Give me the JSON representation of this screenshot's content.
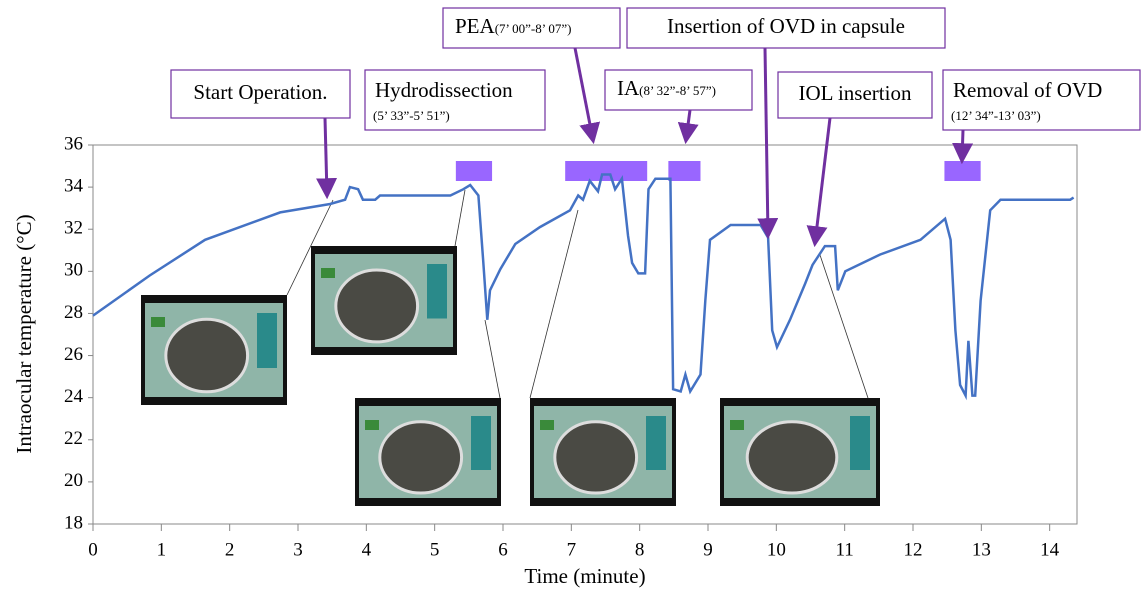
{
  "chart_data": {
    "type": "line",
    "x_label": "Time (minute)",
    "y_label": "Intraocular temperature (°C)",
    "xlim": [
      0,
      14.4
    ],
    "xticks": [
      0,
      1,
      2,
      3,
      4,
      5,
      6,
      7,
      8,
      9,
      10,
      11,
      12,
      13,
      14
    ],
    "ylim": [
      18,
      36
    ],
    "yticks": [
      18,
      20,
      22,
      24,
      26,
      28,
      30,
      32,
      34,
      36
    ],
    "grid": false,
    "series": [
      {
        "color": "#4472c4",
        "x": [
          0,
          0.83,
          1.64,
          2.74,
          3.47,
          3.69,
          3.76,
          3.88,
          3.95,
          4.13,
          4.2,
          5.23,
          5.42,
          5.52,
          5.64,
          5.71,
          5.77,
          5.81,
          5.96,
          6.18,
          6.54,
          6.98,
          7.1,
          7.17,
          7.27,
          7.39,
          7.45,
          7.57,
          7.64,
          7.74,
          7.83,
          7.89,
          7.98,
          8.08,
          8.13,
          8.23,
          8.45,
          8.49,
          8.6,
          8.67,
          8.74,
          8.89,
          8.96,
          9.03,
          9.33,
          9.77,
          9.88,
          9.94,
          10.01,
          10.2,
          10.42,
          10.53,
          10.71,
          10.86,
          10.9,
          11.01,
          11.52,
          12.11,
          12.47,
          12.55,
          12.62,
          12.69,
          12.77,
          12.81,
          12.87,
          12.91,
          12.99,
          13.13,
          13.28,
          14.3,
          14.35
        ],
        "values": [
          27.9,
          29.8,
          31.5,
          32.8,
          33.2,
          33.4,
          34.0,
          33.9,
          33.4,
          33.4,
          33.6,
          33.6,
          33.9,
          34.1,
          33.6,
          30.5,
          27.7,
          29.1,
          30.1,
          31.3,
          32.1,
          32.9,
          33.6,
          33.4,
          34.3,
          33.8,
          34.6,
          34.6,
          33.9,
          34.4,
          31.7,
          30.4,
          29.9,
          29.9,
          33.9,
          34.4,
          34.4,
          24.4,
          24.3,
          25.1,
          24.3,
          25.1,
          28.6,
          31.5,
          32.2,
          32.2,
          31.6,
          27.2,
          26.4,
          27.7,
          29.4,
          30.3,
          31.2,
          31.2,
          29.1,
          30.0,
          30.8,
          31.5,
          32.5,
          31.5,
          27.2,
          24.6,
          24.1,
          26.7,
          24.1,
          24.1,
          28.6,
          32.9,
          33.4,
          33.4,
          33.5
        ]
      }
    ],
    "periods_color": "#9966ff",
    "periods": [
      {
        "start": 5.31,
        "end": 5.84
      },
      {
        "start": 6.91,
        "end": 8.11
      },
      {
        "start": 8.42,
        "end": 8.89
      },
      {
        "start": 12.46,
        "end": 12.99
      }
    ],
    "annotations": [
      {
        "text": "Start Operation."
      },
      {
        "text": "Hydrodissection",
        "subtext": "(5’ 33”-5’ 51”)"
      },
      {
        "text": "PEA",
        "subtext": "(7’ 00”-8’ 07”)"
      },
      {
        "text": "IA",
        "subtext": "(8’ 32”-8’ 57”)"
      },
      {
        "text": "Insertion of OVD in capsule"
      },
      {
        "text": "IOL insertion"
      },
      {
        "text": "Removal of OVD",
        "subtext": "(12’ 34”-13’ 03”)"
      }
    ]
  }
}
